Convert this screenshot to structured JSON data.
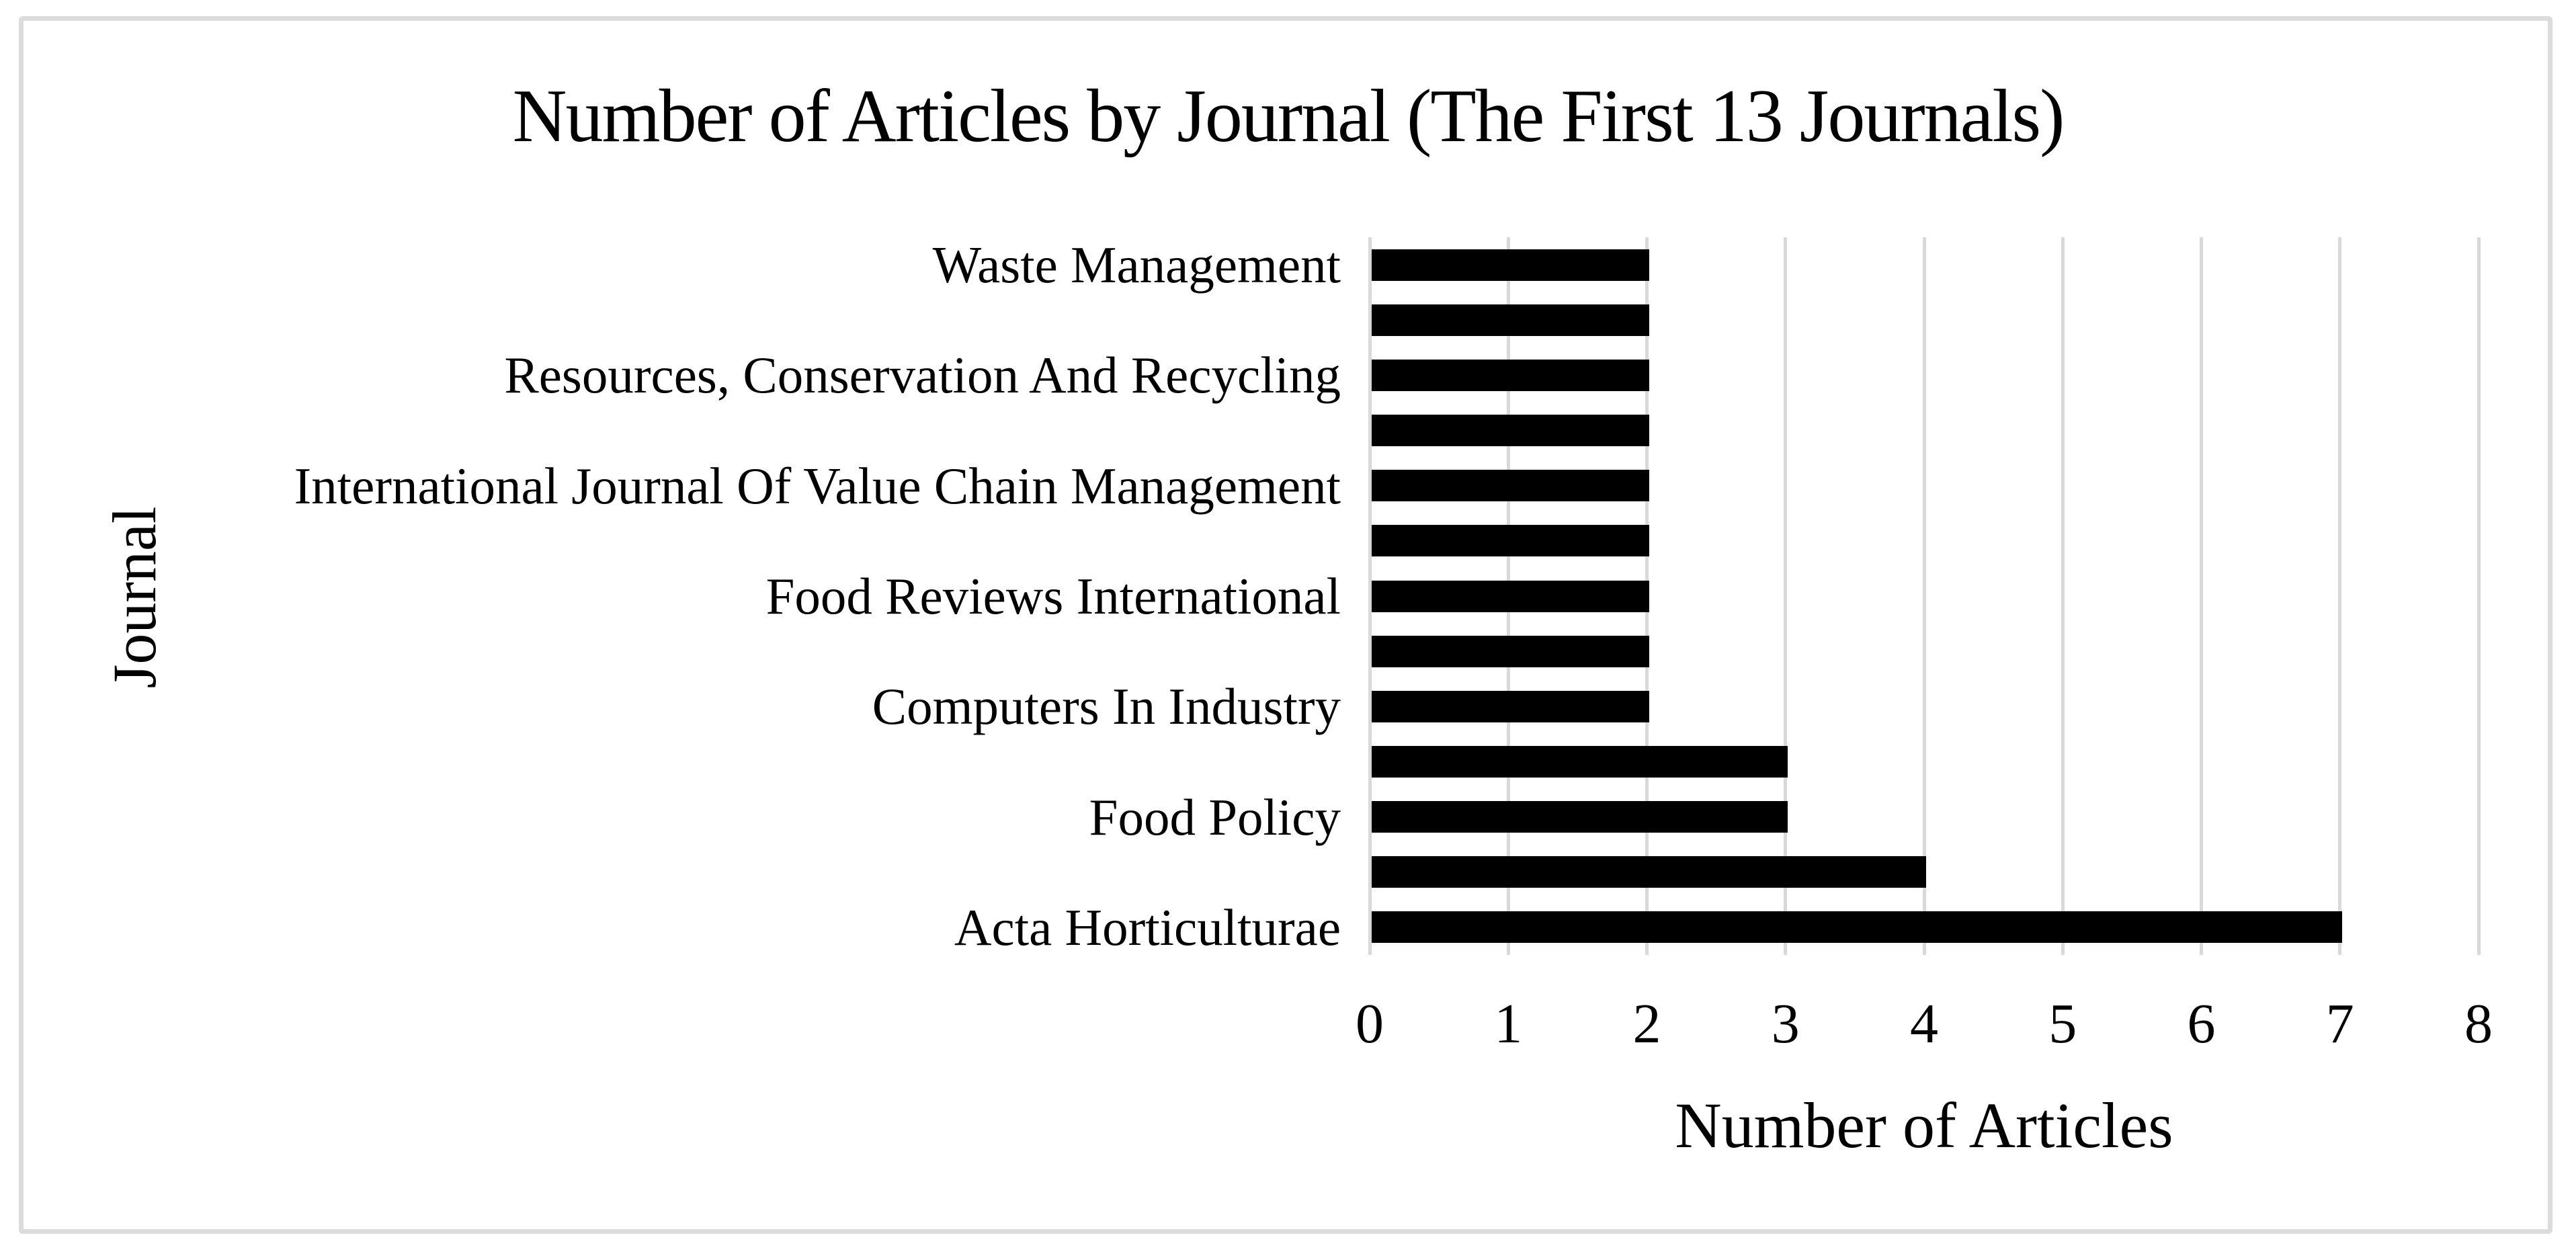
{
  "chart_data": {
    "type": "bar",
    "orientation": "horizontal",
    "title": "Number of Articles by Journal (The First 13 Journals)",
    "xlabel": "Number of Articles",
    "ylabel": "Journal",
    "xlim": [
      0,
      8
    ],
    "xticks": [
      0,
      1,
      2,
      3,
      4,
      5,
      6,
      7,
      8
    ],
    "grid": "vertical-gridlines-on",
    "legend": "none",
    "category_label_interval": 2,
    "bar_color": "#000000",
    "gridline_color": "#d9d9d9",
    "frame_border_color": "#dcdcdc",
    "background_color": "#ffffff",
    "categories": [
      "Waste Management",
      "",
      "Resources, Conservation And Recycling",
      "",
      "International Journal Of Value Chain Management",
      "",
      "Food Reviews International",
      "",
      "Computers In Industry",
      "",
      "Food Policy",
      "",
      "Acta Horticulturae"
    ],
    "values": [
      2,
      2,
      2,
      2,
      2,
      2,
      2,
      2,
      2,
      3,
      3,
      4,
      7
    ]
  }
}
